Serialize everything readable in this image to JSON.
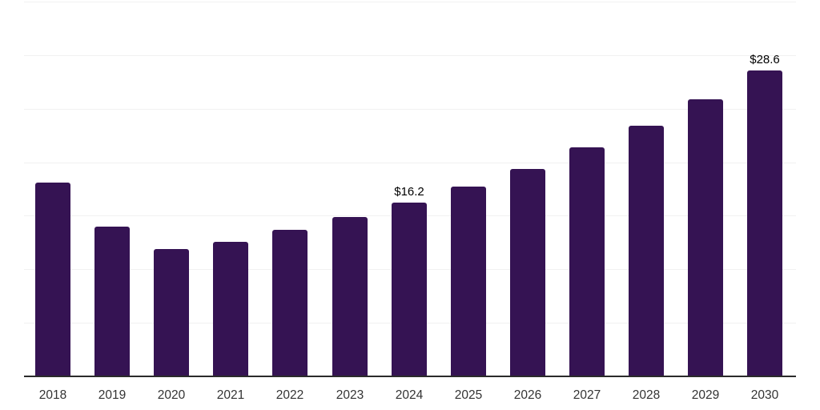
{
  "chart_data": {
    "type": "bar",
    "title": "",
    "xlabel": "",
    "ylabel": "",
    "categories": [
      "2018",
      "2019",
      "2020",
      "2021",
      "2022",
      "2023",
      "2024",
      "2025",
      "2026",
      "2027",
      "2028",
      "2029",
      "2030"
    ],
    "values": [
      18.1,
      14.0,
      11.9,
      12.6,
      13.7,
      14.9,
      16.2,
      17.7,
      19.4,
      21.4,
      23.4,
      25.9,
      28.6
    ],
    "data_labels": [
      {
        "index": 6,
        "text": "$16.2"
      },
      {
        "index": 12,
        "text": "$28.6"
      }
    ],
    "ylim": [
      0,
      35
    ],
    "gridline_step": 5,
    "grid": "horizontal",
    "legend": "none",
    "y_axis_tick_labels_visible": false,
    "colors": {
      "bar": "#351353",
      "gridline": "#f1f1f1",
      "axis": "#2b2b2b",
      "tick_label": "#333333",
      "data_label": "#000000",
      "background": "#ffffff"
    }
  }
}
